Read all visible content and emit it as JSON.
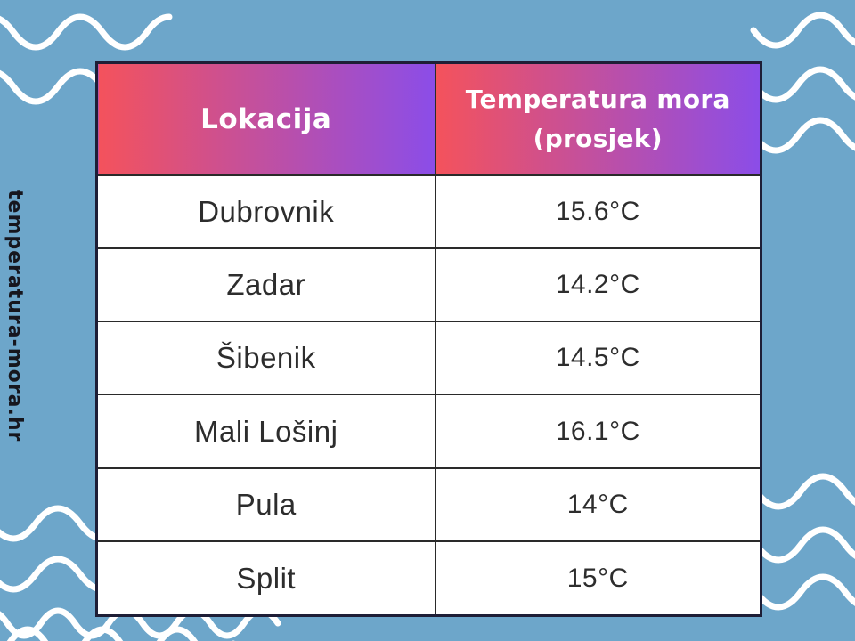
{
  "watermark": {
    "label": "temperatura-mora.hr"
  },
  "table": {
    "headers": [
      "Lokacija",
      "Temperatura mora (prosjek)"
    ],
    "rows": [
      {
        "location": "Dubrovnik",
        "temperature": "15.6°C"
      },
      {
        "location": "Zadar",
        "temperature": "14.2°C"
      },
      {
        "location": "Šibenik",
        "temperature": "14.5°C"
      },
      {
        "location": "Mali Lošinj",
        "temperature": "16.1°C"
      },
      {
        "location": "Pula",
        "temperature": "14°C"
      },
      {
        "location": "Split",
        "temperature": "15°C"
      }
    ]
  },
  "chart_data": {
    "type": "table",
    "title": "",
    "columns": [
      "Lokacija",
      "Temperatura mora (prosjek)"
    ],
    "rows": [
      [
        "Dubrovnik",
        "15.6°C"
      ],
      [
        "Zadar",
        "14.2°C"
      ],
      [
        "Šibenik",
        "14.5°C"
      ],
      [
        "Mali Lošinj",
        "16.1°C"
      ],
      [
        "Pula",
        "14°C"
      ],
      [
        "Split",
        "15°C"
      ]
    ],
    "values_celsius": [
      15.6,
      14.2,
      14.5,
      16.1,
      14,
      15
    ]
  },
  "colors": {
    "background": "#6da6ca",
    "header_gradient_start": "#f4525c",
    "header_gradient_end": "#8b4de8",
    "header_text": "#ffffff",
    "cell_text": "#2d2d2d",
    "table_border": "#1e1e36",
    "inner_border": "#2a2a2a",
    "wave": "#ffffff",
    "watermark_text": "#16161e"
  }
}
